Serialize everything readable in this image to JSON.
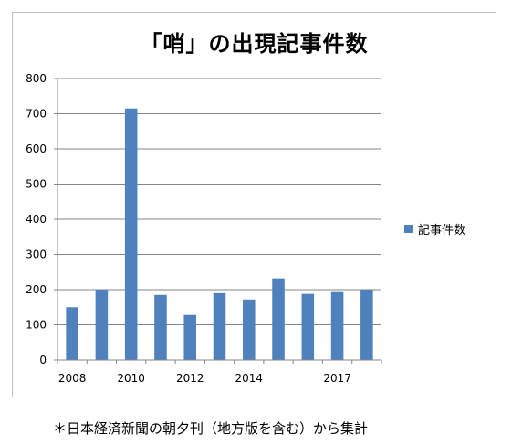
{
  "chart_data": {
    "type": "bar",
    "title": "「哨」の出現記事件数",
    "xlabel": "",
    "ylabel": "",
    "x_tick_labels": [
      "2008",
      "2010",
      "2012",
      "2014",
      "2017"
    ],
    "categories": [
      "2008",
      "2009",
      "2010",
      "2011",
      "2012",
      "2013",
      "2014",
      "2015",
      "2016",
      "2017",
      "2018"
    ],
    "series": [
      {
        "name": "記事件数",
        "color": "#4f81bd",
        "values": [
          150,
          200,
          715,
          185,
          128,
          190,
          172,
          232,
          188,
          193,
          200
        ]
      }
    ],
    "ylim": [
      0,
      800
    ],
    "yticks": [
      0,
      100,
      200,
      300,
      400,
      500,
      600,
      700,
      800
    ],
    "grid": true,
    "legend_position": "right"
  },
  "footnote": "＊日本経済新聞の朝夕刊（地方版を含む）から集計"
}
